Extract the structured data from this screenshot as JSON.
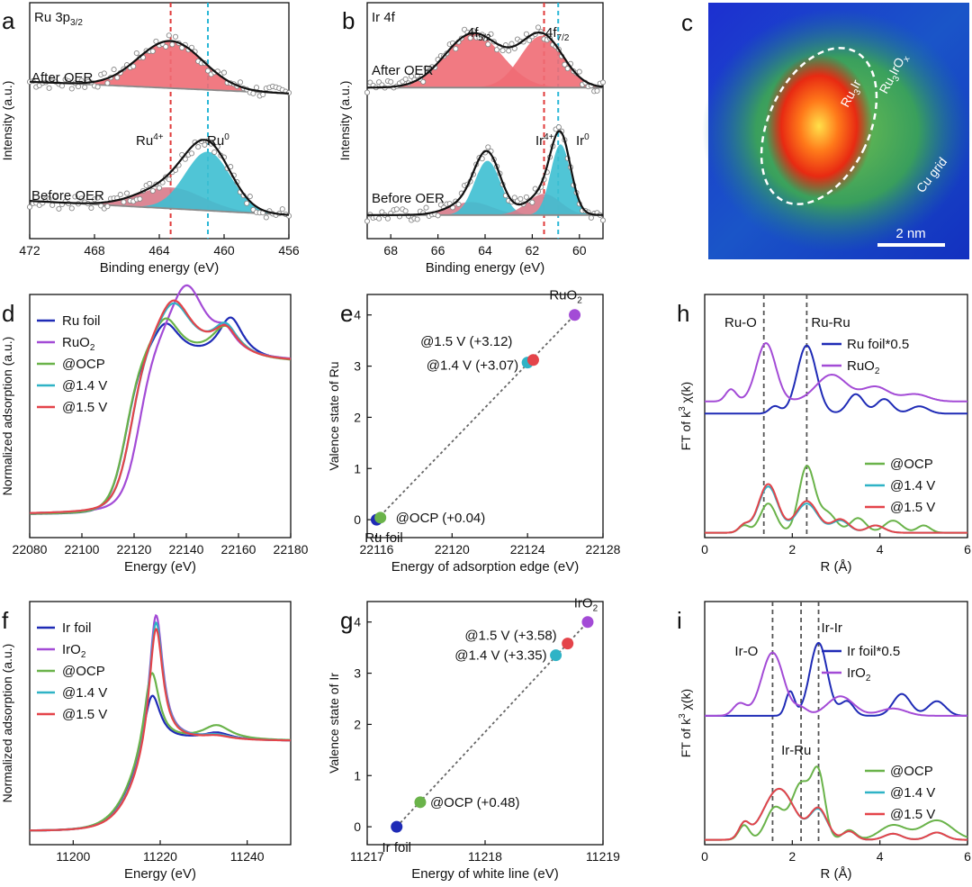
{
  "figure_title": "",
  "colors": {
    "blue": "#1f2bb6",
    "purple": "#a34bd6",
    "green": "#6ab34a",
    "cyan": "#2fb3c6",
    "red": "#e4444a",
    "fill_red": "#ef6b74",
    "fill_cyan": "#3dbfd2",
    "fill_pink": "#d87a8a",
    "dash_red": "#e03a3a",
    "dash_cyan": "#2ab7d6",
    "black": "#111111",
    "gray": "#777777"
  },
  "chart_data": [
    {
      "id": "a",
      "type": "line",
      "letter": "a",
      "corner_label": "Ru 3p",
      "corner_label_sub": "3/2",
      "xlabel": "Binding energy (eV)",
      "ylabel": "Intensity (a.u.)",
      "xlim": [
        472,
        456
      ],
      "xticks": [
        472,
        468,
        464,
        460,
        456
      ],
      "ylim": [
        0,
        10
      ],
      "dashed_lines": [
        {
          "x": 463.3,
          "color": "dash_red"
        },
        {
          "x": 461.0,
          "color": "dash_cyan"
        }
      ],
      "labels": [
        "After OER",
        "Before OER",
        "Ru",
        "4+",
        "Ru",
        "0"
      ],
      "series": [
        {
          "name": "After OER",
          "offset": 6.4,
          "peaks": [
            {
              "c": 463.3,
              "w": 2.0,
              "h": 2.0,
              "fill": "fill_red"
            }
          ],
          "bg_slope": -0.25
        },
        {
          "name": "Before OER",
          "offset": 1.3,
          "peaks": [
            {
              "c": 463.3,
              "w": 2.0,
              "h": 0.9,
              "fill": "fill_pink"
            },
            {
              "c": 461.0,
              "w": 1.4,
              "h": 2.5,
              "fill": "fill_cyan"
            }
          ],
          "bg_slope": -0.3
        }
      ]
    },
    {
      "id": "b",
      "type": "line",
      "letter": "b",
      "corner_label": "Ir 4f",
      "xlabel": "Binding energy (eV)",
      "ylabel": "Intensity (a.u.)",
      "xlim": [
        69,
        59
      ],
      "xticks": [
        68,
        66,
        64,
        62,
        60
      ],
      "ylim": [
        0,
        10
      ],
      "dashed_lines": [
        {
          "x": 61.5,
          "color": "dash_red"
        },
        {
          "x": 60.9,
          "color": "dash_cyan"
        }
      ],
      "labels": [
        "4f",
        "5/2",
        "4f",
        "7/2",
        "After OER",
        "Ir",
        "4+",
        "Ir",
        "0",
        "Before OER"
      ],
      "series": [
        {
          "name": "After OER",
          "offset": 6.4,
          "peaks": [
            {
              "c": 64.5,
              "w": 1.2,
              "h": 2.3,
              "fill": "fill_red"
            },
            {
              "c": 61.6,
              "w": 0.9,
              "h": 2.2,
              "fill": "fill_red"
            }
          ],
          "bg_slope": 0
        },
        {
          "name": "Before OER",
          "offset": 1.0,
          "peaks": [
            {
              "c": 64.6,
              "w": 0.9,
              "h": 0.55,
              "fill": "fill_pink"
            },
            {
              "c": 63.9,
              "w": 0.55,
              "h": 2.3,
              "fill": "fill_cyan"
            },
            {
              "c": 61.5,
              "w": 0.7,
              "h": 0.9,
              "fill": "fill_pink"
            },
            {
              "c": 60.8,
              "w": 0.42,
              "h": 3.0,
              "fill": "fill_cyan"
            }
          ],
          "bg_slope": 0
        }
      ]
    },
    {
      "id": "d",
      "type": "line",
      "letter": "d",
      "xlabel": "Energy (eV)",
      "ylabel": "Normalized adsorption (a.u.)",
      "xlim": [
        22080,
        22180
      ],
      "xticks": [
        22080,
        22100,
        22120,
        22140,
        22160,
        22180
      ],
      "ylim": [
        0,
        1.6
      ],
      "legend": [
        "Ru foil",
        "RuO2",
        "@OCP",
        "@1.4 V",
        "@1.5 V"
      ],
      "series": [
        {
          "name": "Ru foil",
          "color": "blue",
          "edge": 22117,
          "peaks": [
            {
              "c": 22132,
              "h": 0.25,
              "w": 7
            },
            {
              "c": 22157,
              "h": 0.28,
              "w": 6
            }
          ]
        },
        {
          "name": "RuO2",
          "color": "purple",
          "edge": 22122,
          "peaks": [
            {
              "c": 22140,
              "h": 0.5,
              "w": 9
            },
            {
              "c": 22155,
              "h": 0.12,
              "w": 5
            }
          ]
        },
        {
          "name": "@OCP",
          "color": "green",
          "edge": 22117,
          "peaks": [
            {
              "c": 22132,
              "h": 0.28,
              "w": 7
            },
            {
              "c": 22155,
              "h": 0.22,
              "w": 7
            }
          ]
        },
        {
          "name": "@1.4 V",
          "color": "cyan",
          "edge": 22119,
          "peaks": [
            {
              "c": 22135,
              "h": 0.38,
              "w": 9
            },
            {
              "c": 22155,
              "h": 0.2,
              "w": 6
            }
          ]
        },
        {
          "name": "@1.5 V",
          "color": "red",
          "edge": 22119,
          "peaks": [
            {
              "c": 22135,
              "h": 0.4,
              "w": 9
            },
            {
              "c": 22155,
              "h": 0.18,
              "w": 6
            }
          ]
        }
      ]
    },
    {
      "id": "e",
      "type": "scatter",
      "letter": "e",
      "xlabel": "Energy of adsorption edge (eV)",
      "ylabel": "Valence state of Ru",
      "xlim": [
        22115.5,
        22128
      ],
      "xticks": [
        22116,
        22120,
        22124,
        22128
      ],
      "ylim": [
        -0.35,
        4.4
      ],
      "yticks": [
        0,
        1,
        2,
        3,
        4
      ],
      "points": [
        {
          "label": "Ru foil",
          "x": 22116.0,
          "y": 0.0,
          "color": "blue"
        },
        {
          "label": "@OCP (+0.04)",
          "x": 22116.2,
          "y": 0.04,
          "color": "green"
        },
        {
          "label": "@1.4 V (+3.07)",
          "x": 22124.0,
          "y": 3.07,
          "color": "cyan"
        },
        {
          "label": "@1.5 V (+3.12)",
          "x": 22124.3,
          "y": 3.12,
          "color": "red"
        },
        {
          "label": "RuO2",
          "x": 22126.5,
          "y": 4.0,
          "color": "purple"
        }
      ]
    },
    {
      "id": "h",
      "type": "line",
      "letter": "h",
      "xlabel": "R (Å)",
      "ylabel": "FT of k3 χ(k)",
      "xlim": [
        0,
        6
      ],
      "xticks": [
        0,
        2,
        4,
        6
      ],
      "ylim": [
        0,
        10
      ],
      "dashed_lines": [
        {
          "x": 1.35,
          "color": "gray"
        },
        {
          "x": 2.33,
          "color": "gray"
        }
      ],
      "labels": [
        "Ru-O",
        "Ru-Ru"
      ],
      "legend_top": [
        "Ru foil*0.5",
        "RuO2"
      ],
      "legend_bottom": [
        "@OCP",
        "@1.4 V",
        "@1.5 V"
      ],
      "series": [
        {
          "name": "Ru foil*0.5",
          "color": "blue",
          "offset": 5.1,
          "peaks": [
            {
              "c": 1.6,
              "h": 0.3,
              "w": 0.12
            },
            {
              "c": 2.33,
              "h": 2.8,
              "w": 0.22
            },
            {
              "c": 3.45,
              "h": 0.8,
              "w": 0.18
            },
            {
              "c": 4.1,
              "h": 0.6,
              "w": 0.18
            },
            {
              "c": 4.9,
              "h": 0.3,
              "w": 0.2
            }
          ]
        },
        {
          "name": "RuO2",
          "color": "purple",
          "offset": 5.6,
          "peaks": [
            {
              "c": 0.6,
              "h": 0.5,
              "w": 0.12
            },
            {
              "c": 1.4,
              "h": 2.4,
              "w": 0.22
            },
            {
              "c": 2.9,
              "h": 1.1,
              "w": 0.35
            },
            {
              "c": 3.9,
              "h": 0.6,
              "w": 0.3
            },
            {
              "c": 4.8,
              "h": 0.3,
              "w": 0.3
            }
          ]
        },
        {
          "name": "@OCP",
          "color": "green",
          "offset": 0.2,
          "peaks": [
            {
              "c": 0.9,
              "h": 0.3,
              "w": 0.12
            },
            {
              "c": 1.45,
              "h": 1.2,
              "w": 0.18
            },
            {
              "c": 2.33,
              "h": 2.7,
              "w": 0.18
            },
            {
              "c": 2.8,
              "h": 0.8,
              "w": 0.2
            },
            {
              "c": 3.5,
              "h": 0.6,
              "w": 0.18
            },
            {
              "c": 4.3,
              "h": 0.5,
              "w": 0.2
            },
            {
              "c": 5.0,
              "h": 0.3,
              "w": 0.15
            }
          ]
        },
        {
          "name": "@1.4 V",
          "color": "cyan",
          "offset": 0.2,
          "peaks": [
            {
              "c": 0.9,
              "h": 0.3,
              "w": 0.12
            },
            {
              "c": 1.45,
              "h": 1.9,
              "w": 0.22
            },
            {
              "c": 2.33,
              "h": 1.2,
              "w": 0.25
            },
            {
              "c": 3.1,
              "h": 0.5,
              "w": 0.2
            },
            {
              "c": 3.9,
              "h": 0.3,
              "w": 0.2
            }
          ]
        },
        {
          "name": "@1.5 V",
          "color": "red",
          "offset": 0.2,
          "peaks": [
            {
              "c": 0.9,
              "h": 0.3,
              "w": 0.12
            },
            {
              "c": 1.45,
              "h": 2.0,
              "w": 0.22
            },
            {
              "c": 2.33,
              "h": 1.3,
              "w": 0.25
            },
            {
              "c": 3.1,
              "h": 0.55,
              "w": 0.2
            },
            {
              "c": 3.9,
              "h": 0.3,
              "w": 0.2
            }
          ]
        }
      ]
    },
    {
      "id": "f",
      "type": "line",
      "letter": "f",
      "xlabel": "Energy (eV)",
      "ylabel": "Normalized adsorption (a.u.)",
      "xlim": [
        11190,
        11250
      ],
      "xticks": [
        11200,
        11220,
        11240
      ],
      "ylim": [
        0,
        2.7
      ],
      "legend": [
        "Ir foil",
        "IrO2",
        "@OCP",
        "@1.4 V",
        "@1.5 V"
      ],
      "series": [
        {
          "name": "Ir foil",
          "color": "blue",
          "edge": 11214,
          "peaks": [
            {
              "c": 11218,
              "h": 0.7,
              "w": 2.5
            },
            {
              "c": 11233,
              "h": 0.08,
              "w": 4
            }
          ]
        },
        {
          "name": "IrO2",
          "color": "purple",
          "edge": 11215,
          "peaks": [
            {
              "c": 11219,
              "h": 1.6,
              "w": 2.0
            },
            {
              "c": 11233,
              "h": 0.05,
              "w": 4
            }
          ]
        },
        {
          "name": "@OCP",
          "color": "green",
          "edge": 11214,
          "peaks": [
            {
              "c": 11218,
              "h": 0.95,
              "w": 2.2
            },
            {
              "c": 11233,
              "h": 0.16,
              "w": 4
            }
          ]
        },
        {
          "name": "@1.4 V",
          "color": "cyan",
          "edge": 11215,
          "peaks": [
            {
              "c": 11219,
              "h": 1.52,
              "w": 2.0
            },
            {
              "c": 11233,
              "h": 0.05,
              "w": 4
            }
          ]
        },
        {
          "name": "@1.5 V",
          "color": "red",
          "edge": 11215,
          "peaks": [
            {
              "c": 11219,
              "h": 1.45,
              "w": 2.0
            },
            {
              "c": 11233,
              "h": 0.04,
              "w": 4
            }
          ]
        }
      ]
    },
    {
      "id": "g",
      "type": "scatter",
      "letter": "g",
      "xlabel": "Energy of white line (eV)",
      "ylabel": "Valence state of Ir",
      "xlim": [
        11217,
        11219
      ],
      "xticks": [
        11217,
        11218,
        11219
      ],
      "ylim": [
        -0.35,
        4.4
      ],
      "yticks": [
        0,
        1,
        2,
        3,
        4
      ],
      "points": [
        {
          "label": "Ir foil",
          "x": 11217.25,
          "y": 0.0,
          "color": "blue"
        },
        {
          "label": "@OCP (+0.48)",
          "x": 11217.45,
          "y": 0.48,
          "color": "green"
        },
        {
          "label": "@1.4 V (+3.35)",
          "x": 11218.6,
          "y": 3.35,
          "color": "cyan"
        },
        {
          "label": "@1.5 V (+3.58)",
          "x": 11218.7,
          "y": 3.58,
          "color": "red"
        },
        {
          "label": "IrO2",
          "x": 11218.87,
          "y": 4.0,
          "color": "purple"
        }
      ]
    },
    {
      "id": "i",
      "type": "line",
      "letter": "i",
      "xlabel": "R (Å)",
      "ylabel": "FT of k3 χ(k)",
      "xlim": [
        0,
        6
      ],
      "xticks": [
        0,
        2,
        4,
        6
      ],
      "ylim": [
        0,
        10
      ],
      "dashed_lines": [
        {
          "x": 1.55,
          "color": "gray"
        },
        {
          "x": 2.2,
          "color": "gray"
        },
        {
          "x": 2.6,
          "color": "gray"
        }
      ],
      "labels": [
        "Ir-O",
        "Ir-Ir",
        "Ir-Ru"
      ],
      "legend_top": [
        "Ir foil*0.5",
        "IrO2"
      ],
      "legend_bottom": [
        "@OCP",
        "@1.4 V",
        "@1.5 V"
      ],
      "series": [
        {
          "name": "Ir foil*0.5",
          "color": "blue",
          "offset": 5.3,
          "peaks": [
            {
              "c": 1.95,
              "h": 1.0,
              "w": 0.1
            },
            {
              "c": 2.6,
              "h": 3.0,
              "w": 0.2
            },
            {
              "c": 3.25,
              "h": 0.6,
              "w": 0.15
            },
            {
              "c": 4.5,
              "h": 0.9,
              "w": 0.2
            },
            {
              "c": 5.3,
              "h": 0.6,
              "w": 0.2
            }
          ]
        },
        {
          "name": "IrO2",
          "color": "purple",
          "offset": 5.3,
          "peaks": [
            {
              "c": 0.8,
              "h": 0.5,
              "w": 0.15
            },
            {
              "c": 1.55,
              "h": 2.6,
              "w": 0.25
            },
            {
              "c": 2.2,
              "h": 0.3,
              "w": 0.15
            },
            {
              "c": 3.1,
              "h": 0.8,
              "w": 0.3
            },
            {
              "c": 4.3,
              "h": 0.3,
              "w": 0.3
            }
          ]
        },
        {
          "name": "@OCP",
          "color": "green",
          "offset": 0.2,
          "peaks": [
            {
              "c": 0.9,
              "h": 0.6,
              "w": 0.12
            },
            {
              "c": 1.6,
              "h": 1.3,
              "w": 0.2
            },
            {
              "c": 2.2,
              "h": 2.3,
              "w": 0.22
            },
            {
              "c": 2.6,
              "h": 2.5,
              "w": 0.15
            },
            {
              "c": 3.3,
              "h": 0.4,
              "w": 0.15
            },
            {
              "c": 4.3,
              "h": 0.6,
              "w": 0.3
            },
            {
              "c": 5.3,
              "h": 0.8,
              "w": 0.35
            }
          ]
        },
        {
          "name": "@1.4 V",
          "color": "cyan",
          "offset": 0.2,
          "peaks": [
            {
              "c": 0.9,
              "h": 0.6,
              "w": 0.12
            },
            {
              "c": 1.7,
              "h": 2.1,
              "w": 0.35
            },
            {
              "c": 2.6,
              "h": 1.2,
              "w": 0.2
            },
            {
              "c": 3.3,
              "h": 0.35,
              "w": 0.15
            },
            {
              "c": 4.3,
              "h": 0.25,
              "w": 0.2
            },
            {
              "c": 5.3,
              "h": 0.3,
              "w": 0.2
            }
          ]
        },
        {
          "name": "@1.5 V",
          "color": "red",
          "offset": 0.2,
          "peaks": [
            {
              "c": 0.9,
              "h": 0.6,
              "w": 0.12
            },
            {
              "c": 1.7,
              "h": 2.1,
              "w": 0.35
            },
            {
              "c": 2.6,
              "h": 1.25,
              "w": 0.2
            },
            {
              "c": 3.3,
              "h": 0.35,
              "w": 0.15
            },
            {
              "c": 4.3,
              "h": 0.25,
              "w": 0.2
            },
            {
              "c": 5.3,
              "h": 0.3,
              "w": 0.2
            }
          ]
        }
      ]
    }
  ],
  "micrograph": {
    "letter": "c",
    "inner_label": "Ru",
    "inner_label_sub1": "3",
    "inner_label_rest": "Ir",
    "outer_label": "Ru",
    "outer_label_sub1": "3",
    "outer_label_mid": "IrO",
    "outer_label_sub2": "x",
    "grid_label": "Cu grid",
    "scale_bar": "2 nm"
  }
}
